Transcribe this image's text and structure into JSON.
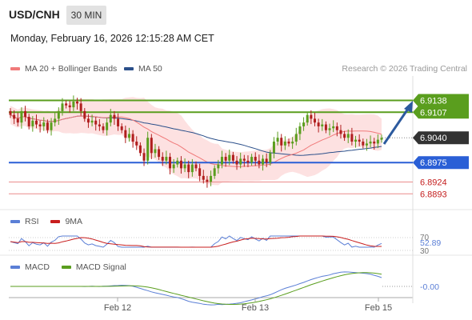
{
  "header": {
    "symbol": "USD/CNH",
    "interval": "30 MIN",
    "datetime": "Monday, February 16, 2026 12:15:28 AM CET"
  },
  "legend": {
    "ma20": {
      "label": "MA 20 + Bollinger Bands",
      "color": "#f07a7a"
    },
    "ma50": {
      "label": "MA 50",
      "color": "#2b4f8a"
    },
    "credit": "Research © 2026 Trading Central"
  },
  "colors": {
    "resistance": "#5a9e1e",
    "pivot": "#2a5fd6",
    "support": "#ea8c8c",
    "current": "#333333",
    "up_candle": "#5a9e1e",
    "down_candle": "#b01e1e",
    "band_fill": "#fde1e1",
    "arrow": "#2c5a9e"
  },
  "chart_data": [
    {
      "type": "candlestick",
      "panel": "price",
      "x_tick_labels": [
        "Feb 12",
        "Feb 13",
        "Feb 15"
      ],
      "y_range": [
        6.886,
        6.92
      ],
      "levels": [
        {
          "value": 6.9138,
          "label": "6.9138",
          "kind": "resistance"
        },
        {
          "value": 6.9107,
          "label": "6.9107",
          "kind": "resistance"
        },
        {
          "value": 6.904,
          "label": "6.9040",
          "kind": "current"
        },
        {
          "value": 6.8975,
          "label": "6.8975",
          "kind": "pivot"
        },
        {
          "value": 6.8924,
          "label": "6.8924",
          "kind": "support"
        },
        {
          "value": 6.8893,
          "label": "6.8893",
          "kind": "support"
        }
      ],
      "close": [
        6.91,
        6.909,
        6.908,
        6.911,
        6.9095,
        6.907,
        6.9085,
        6.9075,
        6.907,
        6.908,
        6.906,
        6.908,
        6.909,
        6.911,
        6.913,
        6.9125,
        6.912,
        6.9135,
        6.913,
        6.911,
        6.909,
        6.908,
        6.9085,
        6.9075,
        6.907,
        6.906,
        6.908,
        6.91,
        6.909,
        6.907,
        6.906,
        6.904,
        6.905,
        6.903,
        6.902,
        6.9,
        6.898,
        6.904,
        6.9,
        6.901,
        6.899,
        6.898,
        6.899,
        6.896,
        6.897,
        6.898,
        6.896,
        6.897,
        6.895,
        6.897,
        6.896,
        6.894,
        6.893,
        6.8925,
        6.894,
        6.896,
        6.897,
        6.899,
        6.898,
        6.8995,
        6.898,
        6.897,
        6.8985,
        6.898,
        6.8975,
        6.899,
        6.898,
        6.897,
        6.8985,
        6.8975,
        6.9,
        6.903,
        6.904,
        6.902,
        6.903,
        6.9025,
        6.903,
        6.905,
        6.907,
        6.908,
        6.91,
        6.909,
        6.908,
        6.907,
        6.9075,
        6.906,
        6.9065,
        6.907,
        6.906,
        6.905,
        6.904,
        6.905,
        6.903,
        6.9035,
        6.903,
        6.902,
        6.9025,
        6.903,
        6.9025,
        6.9035,
        6.904
      ]
    },
    {
      "type": "line",
      "panel": "rsi",
      "series": [
        {
          "name": "RSI",
          "color": "#5b7fd6"
        },
        {
          "name": "9MA",
          "color": "#c81e1e"
        }
      ],
      "y_tick_labels": [
        "70",
        "30"
      ],
      "last_value": "52.89"
    },
    {
      "type": "line",
      "panel": "macd",
      "series": [
        {
          "name": "MACD",
          "color": "#5b7fd6"
        },
        {
          "name": "MACD Signal",
          "color": "#5a9e1e"
        }
      ],
      "last_value": "-0.00"
    }
  ]
}
